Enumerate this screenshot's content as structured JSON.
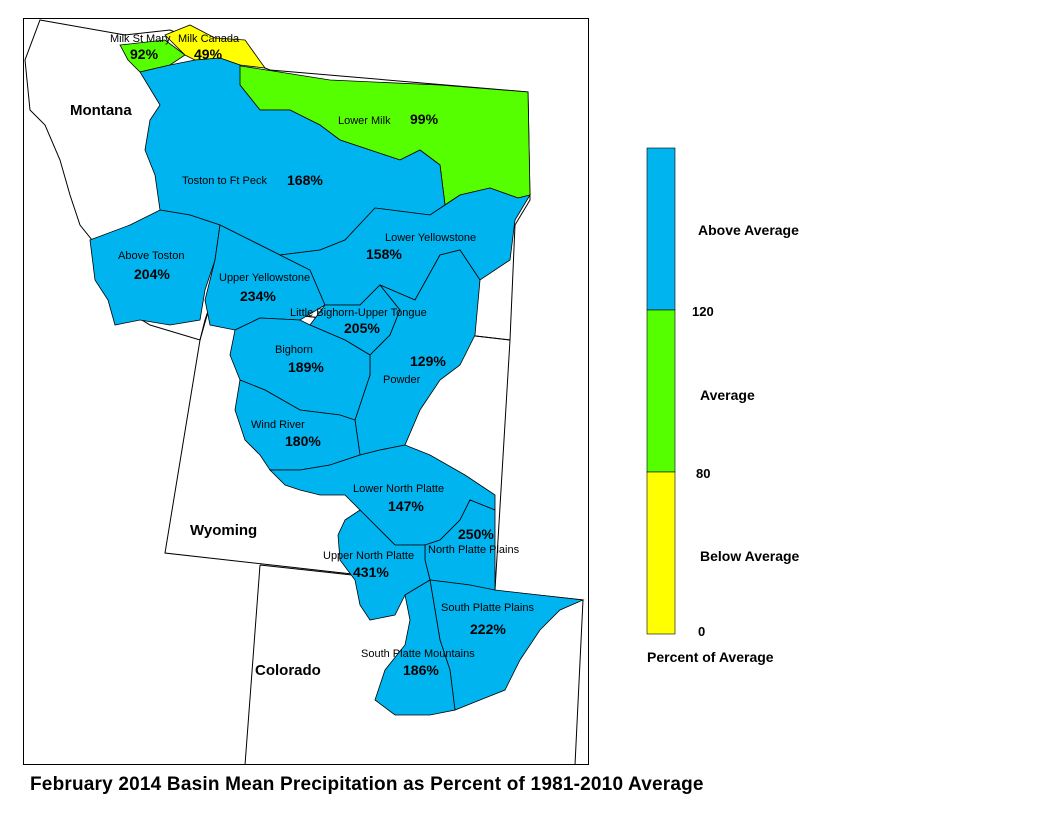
{
  "title": "February 2014 Basin Mean Precipitation as Percent of 1981-2010 Average",
  "colors": {
    "above": "#00b4f0",
    "average": "#55ff00",
    "below": "#ffff00",
    "border": "#000000"
  },
  "states": {
    "montana": "Montana",
    "wyoming": "Wyoming",
    "colorado": "Colorado"
  },
  "basins": {
    "milk_st_mary": {
      "name": "Milk St Mary",
      "pct": "92%"
    },
    "milk_canada": {
      "name": "Milk Canada",
      "pct": "49%"
    },
    "lower_milk": {
      "name": "Lower Milk",
      "pct": "99%"
    },
    "toston_ft_peck": {
      "name": "Toston to Ft Peck",
      "pct": "168%"
    },
    "above_toston": {
      "name": "Above Toston",
      "pct": "204%"
    },
    "upper_yellowstone": {
      "name": "Upper Yellowstone",
      "pct": "234%"
    },
    "lower_yellowstone": {
      "name": "Lower Yellowstone",
      "pct": "158%"
    },
    "little_bighorn": {
      "name": "Little Bighorn-Upper Tongue",
      "pct": "205%"
    },
    "bighorn": {
      "name": "Bighorn",
      "pct": "189%"
    },
    "powder": {
      "name": "Powder",
      "pct": "129%"
    },
    "wind_river": {
      "name": "Wind River",
      "pct": "180%"
    },
    "lower_north_platte": {
      "name": "Lower North Platte",
      "pct": "147%"
    },
    "north_platte_plains": {
      "name": "North Platte Plains",
      "pct": "250%"
    },
    "upper_north_platte": {
      "name": "Upper North Platte",
      "pct": "431%"
    },
    "south_platte_plains": {
      "name": "South Platte Plains",
      "pct": "222%"
    },
    "south_platte_mountains": {
      "name": "South Platte Mountains",
      "pct": "186%"
    }
  },
  "legend": {
    "above": "Above Average",
    "average": "Average",
    "below": "Below Average",
    "tick_120": "120",
    "tick_80": "80",
    "tick_0": "0",
    "title": "Percent of Average"
  }
}
